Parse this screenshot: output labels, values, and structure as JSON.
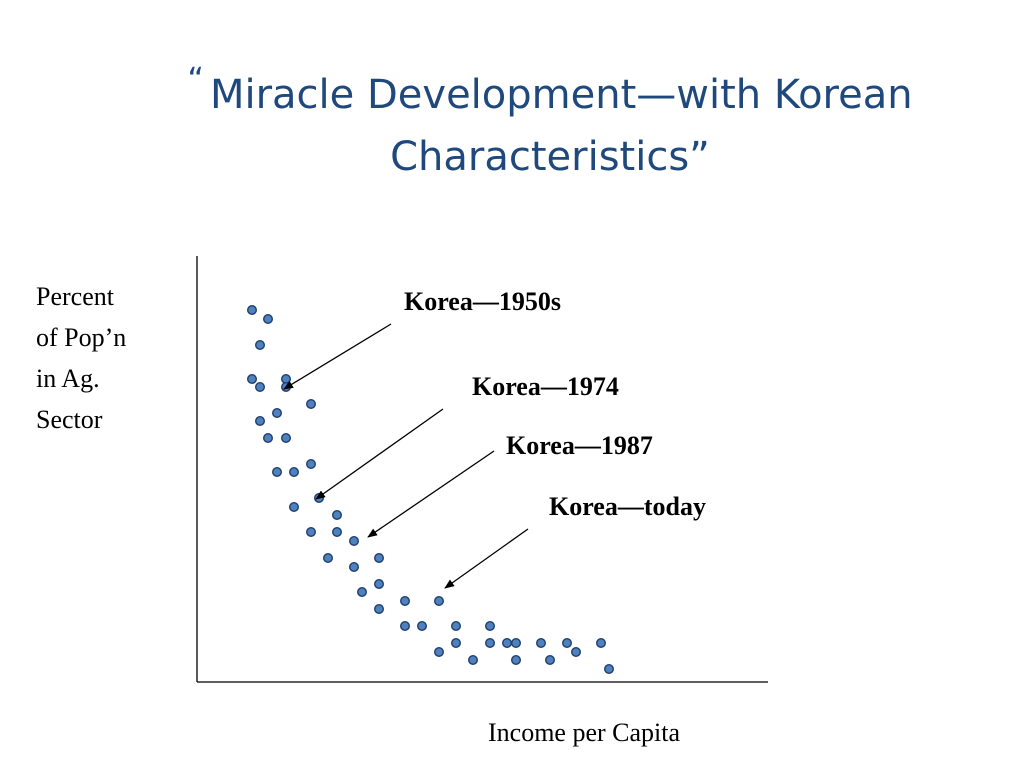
{
  "title": {
    "open_quote": "“",
    "line1": "Miracle Development—with Korean",
    "line2": "Characteristics”"
  },
  "chart_data": {
    "type": "scatter",
    "title": "“Miracle Development—with Korean Characteristics”",
    "xlabel": "Income per Capita",
    "ylabel": "Percent of Pop’n in Ag. Sector",
    "ylabel_lines": [
      "Percent",
      "of Pop’n",
      "in Ag.",
      "Sector"
    ],
    "axes_ticks": false,
    "grid": false,
    "points": [
      [
        252,
        310
      ],
      [
        268,
        319
      ],
      [
        260,
        345
      ],
      [
        252,
        379
      ],
      [
        260,
        387
      ],
      [
        286,
        379
      ],
      [
        286,
        387
      ],
      [
        311,
        404
      ],
      [
        277,
        413
      ],
      [
        260,
        421
      ],
      [
        268,
        438
      ],
      [
        286,
        438
      ],
      [
        277,
        472
      ],
      [
        294,
        472
      ],
      [
        311,
        464
      ],
      [
        319,
        498
      ],
      [
        294,
        507
      ],
      [
        337,
        515
      ],
      [
        311,
        532
      ],
      [
        337,
        532
      ],
      [
        354,
        541
      ],
      [
        328,
        558
      ],
      [
        354,
        567
      ],
      [
        379,
        558
      ],
      [
        379,
        584
      ],
      [
        362,
        592
      ],
      [
        379,
        609
      ],
      [
        405,
        601
      ],
      [
        439,
        601
      ],
      [
        405,
        626
      ],
      [
        422,
        626
      ],
      [
        456,
        626
      ],
      [
        490,
        626
      ],
      [
        456,
        643
      ],
      [
        490,
        643
      ],
      [
        507,
        643
      ],
      [
        516,
        643
      ],
      [
        541,
        643
      ],
      [
        567,
        643
      ],
      [
        601,
        643
      ],
      [
        439,
        652
      ],
      [
        473,
        660
      ],
      [
        516,
        660
      ],
      [
        550,
        660
      ],
      [
        576,
        652
      ],
      [
        609,
        669
      ]
    ],
    "point_color": "#4f81bd",
    "point_edge_color": "#1f3f6f",
    "annotations": [
      {
        "text": "Korea—1950s",
        "arrow_from": [
          391,
          324
        ],
        "arrow_to": [
          284,
          389
        ]
      },
      {
        "text": "Korea—1974",
        "arrow_from": [
          443,
          409
        ],
        "arrow_to": [
          316,
          499
        ]
      },
      {
        "text": "Korea—1987",
        "arrow_from": [
          494,
          451
        ],
        "arrow_to": [
          368,
          537
        ]
      },
      {
        "text": "Korea—today",
        "arrow_from": [
          528,
          529
        ],
        "arrow_to": [
          445,
          588
        ]
      }
    ]
  }
}
